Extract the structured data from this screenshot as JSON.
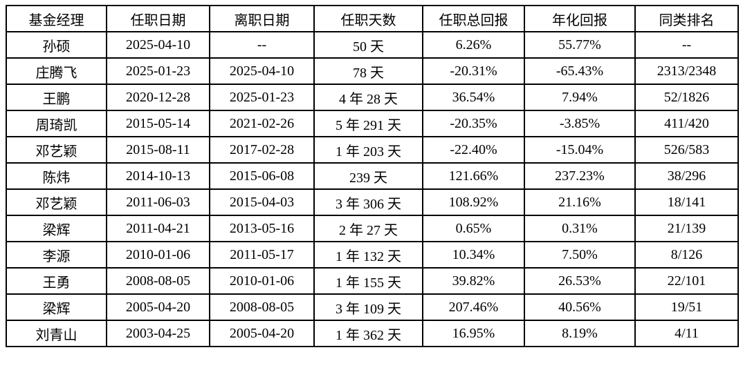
{
  "colors": {
    "border": "#000000",
    "background": "#ffffff",
    "text": "#000000"
  },
  "table": {
    "headers": [
      "基金经理",
      "任职日期",
      "离职日期",
      "任职天数",
      "任职总回报",
      "年化回报",
      "同类排名"
    ],
    "rows": [
      [
        "孙硕",
        "2025-04-10",
        "--",
        "50 天",
        "6.26%",
        "55.77%",
        "--"
      ],
      [
        "庄腾飞",
        "2025-01-23",
        "2025-04-10",
        "78 天",
        "-20.31%",
        "-65.43%",
        "2313/2348"
      ],
      [
        "王鹏",
        "2020-12-28",
        "2025-01-23",
        "4 年 28 天",
        "36.54%",
        "7.94%",
        "52/1826"
      ],
      [
        "周琦凯",
        "2015-05-14",
        "2021-02-26",
        "5 年 291 天",
        "-20.35%",
        "-3.85%",
        "411/420"
      ],
      [
        "邓艺颖",
        "2015-08-11",
        "2017-02-28",
        "1 年 203 天",
        "-22.40%",
        "-15.04%",
        "526/583"
      ],
      [
        "陈炜",
        "2014-10-13",
        "2015-06-08",
        "239 天",
        "121.66%",
        "237.23%",
        "38/296"
      ],
      [
        "邓艺颖",
        "2011-06-03",
        "2015-04-03",
        "3 年 306 天",
        "108.92%",
        "21.16%",
        "18/141"
      ],
      [
        "梁辉",
        "2011-04-21",
        "2013-05-16",
        "2 年 27 天",
        "0.65%",
        "0.31%",
        "21/139"
      ],
      [
        "李源",
        "2010-01-06",
        "2011-05-17",
        "1 年 132 天",
        "10.34%",
        "7.50%",
        "8/126"
      ],
      [
        "王勇",
        "2008-08-05",
        "2010-01-06",
        "1 年 155 天",
        "39.82%",
        "26.53%",
        "22/101"
      ],
      [
        "梁辉",
        "2005-04-20",
        "2008-08-05",
        "3 年 109 天",
        "207.46%",
        "40.56%",
        "19/51"
      ],
      [
        "刘青山",
        "2003-04-25",
        "2005-04-20",
        "1 年 362 天",
        "16.95%",
        "8.19%",
        "4/11"
      ]
    ]
  }
}
